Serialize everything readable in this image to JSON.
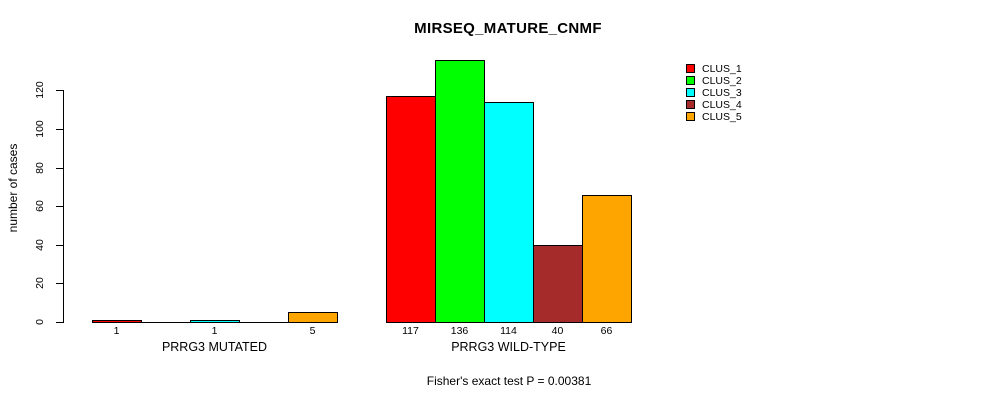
{
  "chart_data": {
    "type": "bar",
    "title": "MIRSEQ_MATURE_CNMF",
    "ylabel": "number of cases",
    "xlabel": "",
    "subtitle": "Fisher's exact test P = 0.00381",
    "categories": [
      "PRRG3 MUTATED",
      "PRRG3 WILD-TYPE"
    ],
    "series": [
      {
        "name": "CLUS_1",
        "color": "#ff0000",
        "values": [
          1,
          117
        ]
      },
      {
        "name": "CLUS_2",
        "color": "#00ff00",
        "values": [
          0,
          136
        ]
      },
      {
        "name": "CLUS_3",
        "color": "#00ffff",
        "values": [
          1,
          114
        ]
      },
      {
        "name": "CLUS_4",
        "color": "#a52a2a",
        "values": [
          0,
          40
        ]
      },
      {
        "name": "CLUS_5",
        "color": "#ffa500",
        "values": [
          5,
          66
        ]
      }
    ],
    "yticks": [
      0,
      20,
      40,
      60,
      80,
      100,
      120
    ],
    "ylim": [
      0,
      140
    ],
    "grid": false,
    "legend_position": "top-right",
    "legend_entries": [
      "CLUS_1",
      "CLUS_2",
      "CLUS_3",
      "CLUS_4",
      "CLUS_5"
    ],
    "bar_border_color": "#000000",
    "axis_color": "#000000",
    "background_color": "#ffffff",
    "value_labels_hide_zero": true
  }
}
